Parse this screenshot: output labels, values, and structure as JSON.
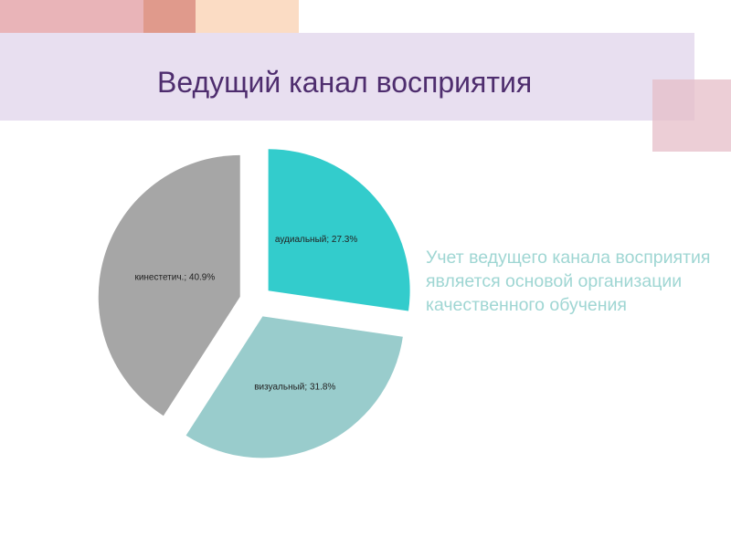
{
  "title": "Ведущий канал восприятия",
  "side_text": "Учет ведущего канала восприятия является основой организации качественного обучения",
  "colors": {
    "title": "#4e2d6e",
    "side_text": "#9fd6d3",
    "title_band": "#e8dff0"
  },
  "chart_data": {
    "type": "pie",
    "slices": [
      {
        "label": "аудиальный; 27.3%",
        "value": 27.3,
        "color": "#33cccc"
      },
      {
        "label": "визуальный; 31.8%",
        "value": 31.8,
        "color": "#99cccc"
      },
      {
        "label": "кинестетич.; 40.9%",
        "value": 40.9,
        "color": "#a6a6a6"
      }
    ],
    "exploded": true,
    "legend": "none"
  }
}
